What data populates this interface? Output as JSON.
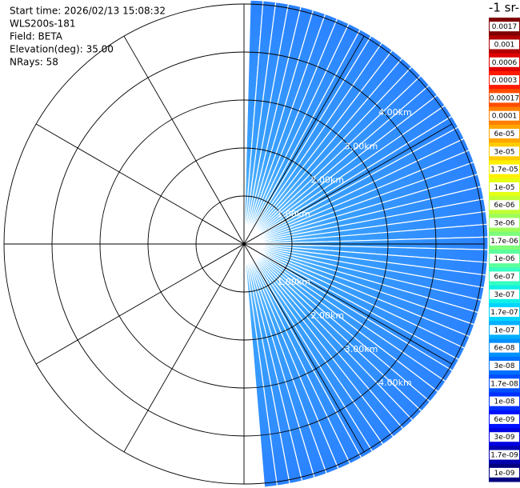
{
  "header": {
    "lines": [
      "Start time: 2026/02/13 15:08:32",
      "WLS200s-181",
      "Field: BETA",
      "Elevation(deg): 35.00",
      "NRays: 58"
    ]
  },
  "range_labels": {
    "upper": [
      "1.00km",
      "2.00km",
      "3.00km",
      "4.00km"
    ],
    "lower": [
      "1.00km",
      "2.00km",
      "3.00km",
      "4.00km"
    ]
  },
  "colorbar": {
    "title": "-1 sr-",
    "ticks": [
      {
        "label": "0.0017",
        "color": "#7f0000"
      },
      {
        "label": "0.001",
        "color": "#b00000"
      },
      {
        "label": "0.0006",
        "color": "#e00000"
      },
      {
        "label": "0.0003",
        "color": "#ff1a00"
      },
      {
        "label": "0.00017",
        "color": "#ff4d00"
      },
      {
        "label": "0.0001",
        "color": "#ff7f00"
      },
      {
        "label": "6e-05",
        "color": "#ffa600"
      },
      {
        "label": "3e-05",
        "color": "#ffcc00"
      },
      {
        "label": "1.7e-05",
        "color": "#fff000"
      },
      {
        "label": "1e-05",
        "color": "#e5ff12"
      },
      {
        "label": "6e-06",
        "color": "#c1ff36"
      },
      {
        "label": "3e-06",
        "color": "#9cff5b"
      },
      {
        "label": "1.7e-06",
        "color": "#7dff7a"
      },
      {
        "label": "1e-06",
        "color": "#5bff9c"
      },
      {
        "label": "6e-07",
        "color": "#36ffc1"
      },
      {
        "label": "3e-07",
        "color": "#12f0e5"
      },
      {
        "label": "1.7e-07",
        "color": "#00d4ff"
      },
      {
        "label": "1e-07",
        "color": "#00b0ff"
      },
      {
        "label": "6e-08",
        "color": "#0090ff"
      },
      {
        "label": "3e-08",
        "color": "#0070ff"
      },
      {
        "label": "1.7e-08",
        "color": "#0050ff"
      },
      {
        "label": "1e-08",
        "color": "#0030ff"
      },
      {
        "label": "6e-09",
        "color": "#0010ff"
      },
      {
        "label": "3e-09",
        "color": "#0000e0"
      },
      {
        "label": "1.7e-09",
        "color": "#0000b0"
      },
      {
        "label": "1e-09",
        "color": "#000080"
      }
    ]
  }
}
